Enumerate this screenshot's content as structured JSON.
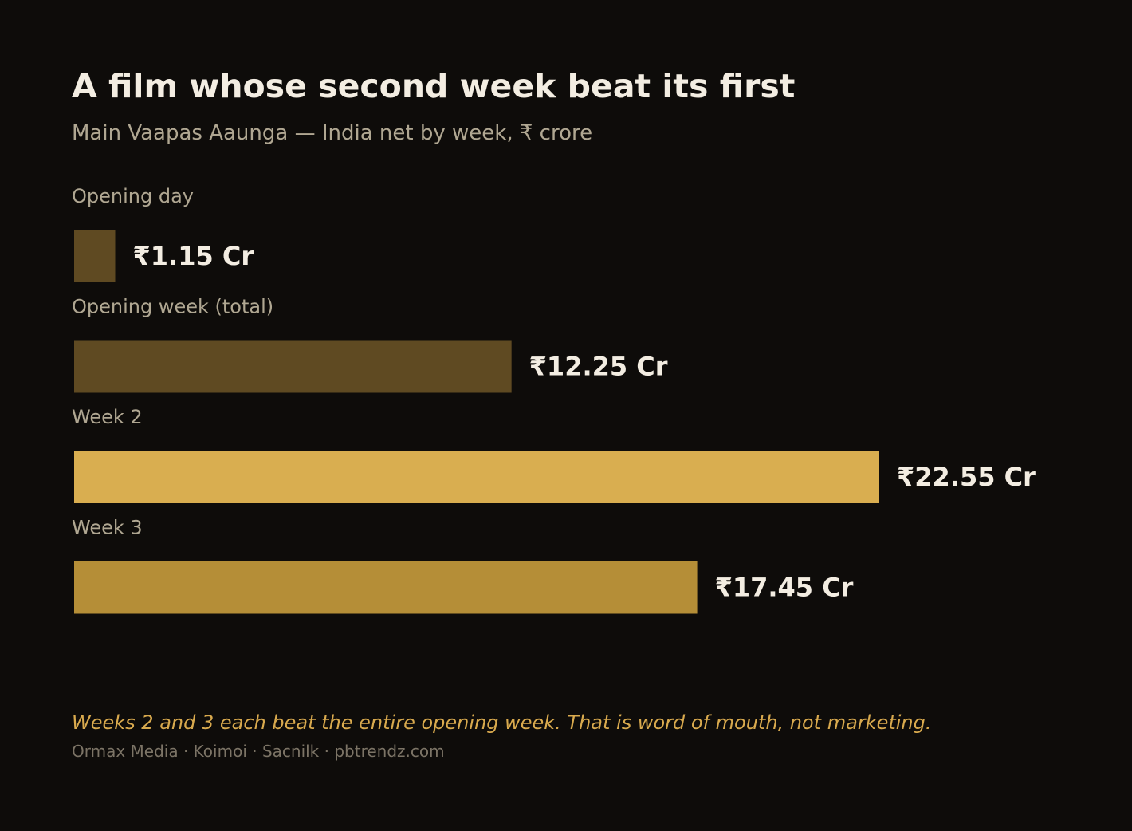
{
  "chart_data": {
    "type": "bar",
    "orientation": "horizontal",
    "title": "A film whose second week beat its first",
    "subtitle": "Main Vaapas Aaunga — India net by week, ₹ crore",
    "categories": [
      "Opening day",
      "Opening week (total)",
      "Week 2",
      "Week 3"
    ],
    "values": [
      1.15,
      12.25,
      22.55,
      17.45
    ],
    "value_labels": [
      "₹1.15 Cr",
      "₹12.25 Cr",
      "₹22.55 Cr",
      "₹17.45 Cr"
    ],
    "bar_colors": [
      "#5f4a22",
      "#5f4a22",
      "#d9ae50",
      "#b58e37"
    ],
    "xlim": [
      0,
      22.55
    ],
    "grid": false,
    "legend": "none"
  },
  "note": "Weeks 2 and 3 each beat the entire opening week. That is word of mouth, not marketing.",
  "source": "Ormax Media · Koimoi · Sacnilk · pbtrendz.com",
  "colors": {
    "background": "#0e0c0a",
    "title": "#f3ede2",
    "subtitle": "#b0a792",
    "accent": "#d9aa4e",
    "muted": "#7c7466"
  }
}
